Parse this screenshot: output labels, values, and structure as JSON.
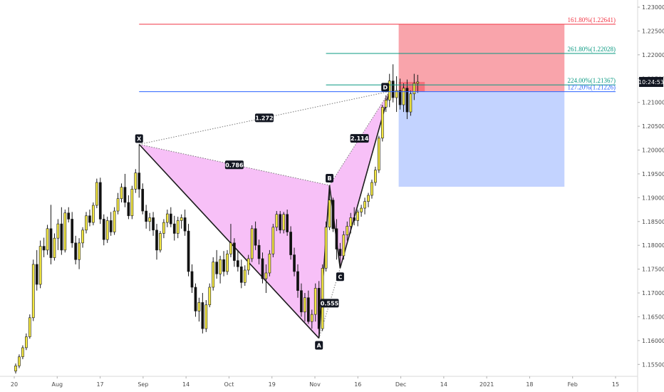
{
  "chart_data": {
    "type": "candlestick",
    "pattern": "harmonic",
    "ylim": [
      1.1525,
      1.2315
    ],
    "y_ticks": [
      "1.15500",
      "1.16000",
      "1.16500",
      "1.17000",
      "1.17500",
      "1.18000",
      "1.18500",
      "1.19000",
      "1.19500",
      "1.20000",
      "1.20500",
      "1.21000",
      "1.21500",
      "1.22000",
      "1.22500",
      "1.23000"
    ],
    "x_ticks": [
      "20",
      "Aug",
      "17",
      "Sep",
      "14",
      "Oct",
      "19",
      "Nov",
      "16",
      "Dec",
      "14",
      "2021",
      "18",
      "Feb",
      "15"
    ],
    "current_price_label": "10:24:53",
    "current_price": 1.2143,
    "points": [
      {
        "label": "X",
        "bar": 35,
        "price": 1.2012
      },
      {
        "label": "A",
        "bar": 86,
        "price": 1.1605
      },
      {
        "label": "B",
        "bar": 89,
        "price": 1.1926
      },
      {
        "label": "C",
        "bar": 92,
        "price": 1.1752
      },
      {
        "label": "D",
        "bar": 106,
        "price": 1.2123
      }
    ],
    "ratios": [
      {
        "label": "1.272",
        "from": "X",
        "to": "D"
      },
      {
        "label": "0.786",
        "from": "X",
        "to": "B"
      },
      {
        "label": "2.114",
        "from": "B",
        "to": "D"
      },
      {
        "label": "0.555",
        "from": "A",
        "to": "C"
      }
    ],
    "fib_levels": [
      {
        "label": "161.80%(1.22641)",
        "price": 1.22641,
        "color": "#f23645",
        "x_start_bar": 35
      },
      {
        "label": "261.80%(1.22028)",
        "price": 1.22028,
        "color": "#089981",
        "x_start_bar": 88
      },
      {
        "label": "224.00%(1.21367)",
        "price": 1.21367,
        "color": "#089981",
        "x_start_bar": 88
      },
      {
        "label": "127.20%(1.21226)",
        "price": 1.21226,
        "color": "#2962ff",
        "x_start_bar": 35
      }
    ],
    "position": {
      "entry": 1.2123,
      "stop": 1.2264,
      "target": 1.1923,
      "current": 1.2143,
      "start_bar": 108,
      "end_bar": 155
    },
    "candles": [
      [
        1.1536,
        1.1552,
        1.1531,
        1.1547
      ],
      [
        1.1547,
        1.1571,
        1.1542,
        1.1566
      ],
      [
        1.1566,
        1.159,
        1.1561,
        1.1585
      ],
      [
        1.1585,
        1.1615,
        1.158,
        1.1608
      ],
      [
        1.1608,
        1.1655,
        1.1604,
        1.1648
      ],
      [
        1.1648,
        1.177,
        1.1641,
        1.176
      ],
      [
        1.176,
        1.179,
        1.1705,
        1.1718
      ],
      [
        1.1718,
        1.181,
        1.171,
        1.1798
      ],
      [
        1.1798,
        1.1816,
        1.1775,
        1.179
      ],
      [
        1.179,
        1.1843,
        1.178,
        1.1835
      ],
      [
        1.1835,
        1.1885,
        1.176,
        1.1774
      ],
      [
        1.1774,
        1.1825,
        1.1768,
        1.1815
      ],
      [
        1.1815,
        1.1855,
        1.179,
        1.1845
      ],
      [
        1.1845,
        1.188,
        1.178,
        1.179
      ],
      [
        1.179,
        1.1875,
        1.1785,
        1.1868
      ],
      [
        1.1868,
        1.188,
        1.1848,
        1.1855
      ],
      [
        1.1855,
        1.187,
        1.1795,
        1.1805
      ],
      [
        1.1805,
        1.182,
        1.176,
        1.177
      ],
      [
        1.177,
        1.1815,
        1.175,
        1.1805
      ],
      [
        1.1805,
        1.1838,
        1.1795,
        1.1832
      ],
      [
        1.1832,
        1.187,
        1.1825,
        1.1862
      ],
      [
        1.1862,
        1.1875,
        1.184,
        1.1848
      ],
      [
        1.1848,
        1.189,
        1.1842,
        1.1884
      ],
      [
        1.1884,
        1.194,
        1.1878,
        1.1932
      ],
      [
        1.1932,
        1.1942,
        1.1845,
        1.1855
      ],
      [
        1.1855,
        1.1865,
        1.18,
        1.1812
      ],
      [
        1.1812,
        1.186,
        1.1805,
        1.1852
      ],
      [
        1.1852,
        1.187,
        1.182,
        1.1828
      ],
      [
        1.1828,
        1.188,
        1.1822,
        1.1872
      ],
      [
        1.1872,
        1.191,
        1.1865,
        1.1898
      ],
      [
        1.1898,
        1.193,
        1.189,
        1.1922
      ],
      [
        1.1922,
        1.195,
        1.188,
        1.189
      ],
      [
        1.189,
        1.1905,
        1.1855,
        1.1862
      ],
      [
        1.1862,
        1.1925,
        1.1855,
        1.1918
      ],
      [
        1.1918,
        1.196,
        1.191,
        1.1952
      ],
      [
        1.1952,
        1.2012,
        1.19,
        1.1918
      ],
      [
        1.1918,
        1.193,
        1.1865,
        1.1872
      ],
      [
        1.1872,
        1.1885,
        1.1835,
        1.185
      ],
      [
        1.185,
        1.1868,
        1.183,
        1.1858
      ],
      [
        1.1858,
        1.187,
        1.182,
        1.1832
      ],
      [
        1.1832,
        1.1845,
        1.177,
        1.179
      ],
      [
        1.179,
        1.183,
        1.1785,
        1.1825
      ],
      [
        1.1825,
        1.1855,
        1.1815,
        1.1848
      ],
      [
        1.1848,
        1.1875,
        1.1838,
        1.1866
      ],
      [
        1.1866,
        1.188,
        1.1838,
        1.1845
      ],
      [
        1.1845,
        1.1862,
        1.181,
        1.1825
      ],
      [
        1.1825,
        1.186,
        1.1815,
        1.1852
      ],
      [
        1.1852,
        1.1865,
        1.1835,
        1.1858
      ],
      [
        1.1858,
        1.1875,
        1.182,
        1.183
      ],
      [
        1.183,
        1.1845,
        1.1735,
        1.1745
      ],
      [
        1.1745,
        1.176,
        1.17,
        1.1712
      ],
      [
        1.1712,
        1.172,
        1.165,
        1.1662
      ],
      [
        1.1662,
        1.169,
        1.164,
        1.168
      ],
      [
        1.168,
        1.17,
        1.1615,
        1.1625
      ],
      [
        1.1625,
        1.1685,
        1.1618,
        1.1675
      ],
      [
        1.1675,
        1.172,
        1.167,
        1.1712
      ],
      [
        1.1712,
        1.1775,
        1.1705,
        1.1765
      ],
      [
        1.1765,
        1.179,
        1.173,
        1.174
      ],
      [
        1.174,
        1.1778,
        1.172,
        1.177
      ],
      [
        1.177,
        1.1788,
        1.1735,
        1.1745
      ],
      [
        1.1745,
        1.179,
        1.1738,
        1.1782
      ],
      [
        1.1782,
        1.1845,
        1.1775,
        1.1805
      ],
      [
        1.1805,
        1.1815,
        1.1755,
        1.1768
      ],
      [
        1.1768,
        1.179,
        1.1745,
        1.1755
      ],
      [
        1.1755,
        1.177,
        1.171,
        1.1722
      ],
      [
        1.1722,
        1.1758,
        1.1715,
        1.1748
      ],
      [
        1.1748,
        1.178,
        1.1738,
        1.1772
      ],
      [
        1.1772,
        1.1842,
        1.1765,
        1.1835
      ],
      [
        1.1835,
        1.185,
        1.179,
        1.18
      ],
      [
        1.18,
        1.1812,
        1.176,
        1.1772
      ],
      [
        1.1772,
        1.1785,
        1.172,
        1.173
      ],
      [
        1.173,
        1.176,
        1.17,
        1.1742
      ],
      [
        1.1742,
        1.179,
        1.1735,
        1.1782
      ],
      [
        1.1782,
        1.1845,
        1.1775,
        1.1838
      ],
      [
        1.1838,
        1.1872,
        1.183,
        1.1865
      ],
      [
        1.1865,
        1.1872,
        1.1825,
        1.1832
      ],
      [
        1.1832,
        1.187,
        1.1825,
        1.1865
      ],
      [
        1.1865,
        1.1875,
        1.182,
        1.1828
      ],
      [
        1.1828,
        1.184,
        1.177,
        1.178
      ],
      [
        1.178,
        1.1795,
        1.1735,
        1.1745
      ],
      [
        1.1745,
        1.176,
        1.169,
        1.1705
      ],
      [
        1.1705,
        1.172,
        1.165,
        1.166
      ],
      [
        1.166,
        1.17,
        1.164,
        1.169
      ],
      [
        1.169,
        1.1705,
        1.1635,
        1.164
      ],
      [
        1.164,
        1.1665,
        1.1625,
        1.1655
      ],
      [
        1.1655,
        1.172,
        1.164,
        1.171
      ],
      [
        1.171,
        1.1725,
        1.1605,
        1.1625
      ],
      [
        1.1625,
        1.176,
        1.162,
        1.1752
      ],
      [
        1.1752,
        1.185,
        1.1745,
        1.1838
      ],
      [
        1.1838,
        1.1926,
        1.1832,
        1.1895
      ],
      [
        1.1895,
        1.19,
        1.1828,
        1.1835
      ],
      [
        1.1835,
        1.1855,
        1.177,
        1.1792
      ],
      [
        1.1792,
        1.1805,
        1.1752,
        1.1778
      ],
      [
        1.1778,
        1.183,
        1.177,
        1.1822
      ],
      [
        1.1822,
        1.185,
        1.181,
        1.184
      ],
      [
        1.184,
        1.1868,
        1.1825,
        1.1858
      ],
      [
        1.1858,
        1.188,
        1.1842,
        1.1852
      ],
      [
        1.1852,
        1.1875,
        1.184,
        1.187
      ],
      [
        1.187,
        1.1885,
        1.186,
        1.1878
      ],
      [
        1.1878,
        1.19,
        1.1865,
        1.1892
      ],
      [
        1.1892,
        1.191,
        1.188,
        1.1905
      ],
      [
        1.1905,
        1.1938,
        1.1898,
        1.1932
      ],
      [
        1.1932,
        1.1965,
        1.1925,
        1.1958
      ],
      [
        1.1958,
        1.203,
        1.1952,
        1.2025
      ],
      [
        1.2025,
        1.2095,
        1.2018,
        1.209
      ],
      [
        1.209,
        1.2115,
        1.208,
        1.2105
      ],
      [
        1.2105,
        1.216,
        1.209,
        1.2145
      ],
      [
        1.2145,
        1.218,
        1.21,
        1.211
      ],
      [
        1.211,
        1.2155,
        1.208,
        1.2125
      ],
      [
        1.2125,
        1.215,
        1.2085,
        1.2095
      ],
      [
        1.2095,
        1.214,
        1.208,
        1.213
      ],
      [
        1.213,
        1.2148,
        1.2065,
        1.208
      ],
      [
        1.208,
        1.2125,
        1.2072,
        1.2118
      ],
      [
        1.2118,
        1.216,
        1.2105,
        1.214
      ],
      [
        1.214,
        1.2158,
        1.212,
        1.2143
      ]
    ]
  }
}
